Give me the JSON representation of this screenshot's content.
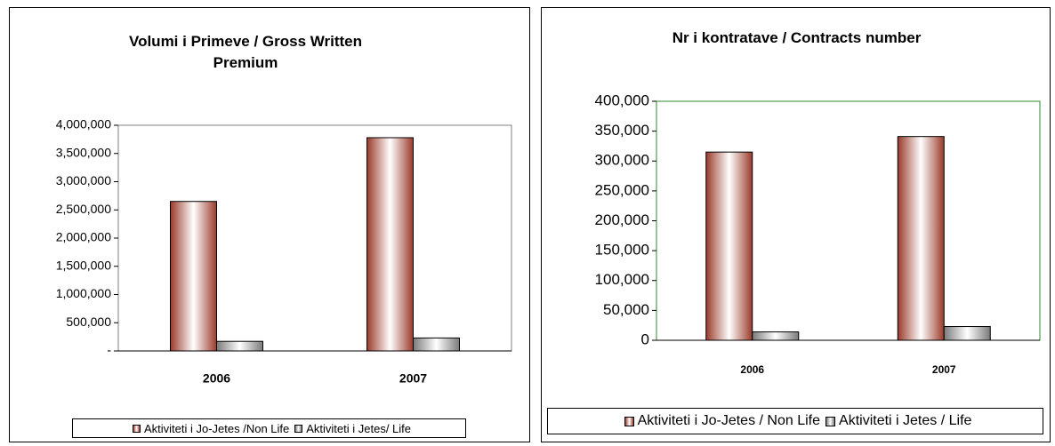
{
  "chart_data": [
    {
      "type": "bar",
      "title": "Volumi i Primeve / Gross Written Premium",
      "categories": [
        "2006",
        "2007"
      ],
      "series": [
        {
          "name": "Aktiviteti i Jo-Jetes /Non Life",
          "color": "#9a3a2a",
          "values": [
            2650000,
            3780000
          ]
        },
        {
          "name": "Aktiviteti i Jetes/ Life",
          "color": "#7a7a7a",
          "values": [
            170000,
            230000
          ]
        }
      ],
      "ylim": [
        0,
        4000000
      ],
      "yticks": [
        {
          "value": 0,
          "label": "-"
        },
        {
          "value": 500000,
          "label": "500,000"
        },
        {
          "value": 1000000,
          "label": "1,000,000"
        },
        {
          "value": 1500000,
          "label": "1,500,000"
        },
        {
          "value": 2000000,
          "label": "2,000,000"
        },
        {
          "value": 2500000,
          "label": "2,500,000"
        },
        {
          "value": 3000000,
          "label": "3,000,000"
        },
        {
          "value": 3500000,
          "label": "3,500,000"
        },
        {
          "value": 4000000,
          "label": "4,000,000"
        }
      ],
      "plot_border": "#808080",
      "legend": "bottom"
    },
    {
      "type": "bar",
      "title": "Nr i kontratave / Contracts number",
      "categories": [
        "2006",
        "2007"
      ],
      "series": [
        {
          "name": "Aktiviteti i Jo-Jetes / Non Life",
          "color": "#9a3a2a",
          "values": [
            315000,
            341000
          ]
        },
        {
          "name": "Aktiviteti i Jetes / Life",
          "color": "#7a7a7a",
          "values": [
            14000,
            23000
          ]
        }
      ],
      "ylim": [
        0,
        400000
      ],
      "yticks": [
        0,
        {
          "value": 50000,
          "label": "50,000"
        },
        {
          "value": 100000,
          "label": "100,000"
        },
        {
          "value": 150000,
          "label": "150,000"
        },
        {
          "value": 200000,
          "label": "200,000"
        },
        {
          "value": 250000,
          "label": "250,000"
        },
        {
          "value": 300000,
          "label": "300,000"
        },
        {
          "value": 350000,
          "label": "350,000"
        },
        {
          "value": 400000,
          "label": "400,000"
        }
      ],
      "plot_border": "#2e8b2e",
      "legend": "bottom"
    }
  ]
}
